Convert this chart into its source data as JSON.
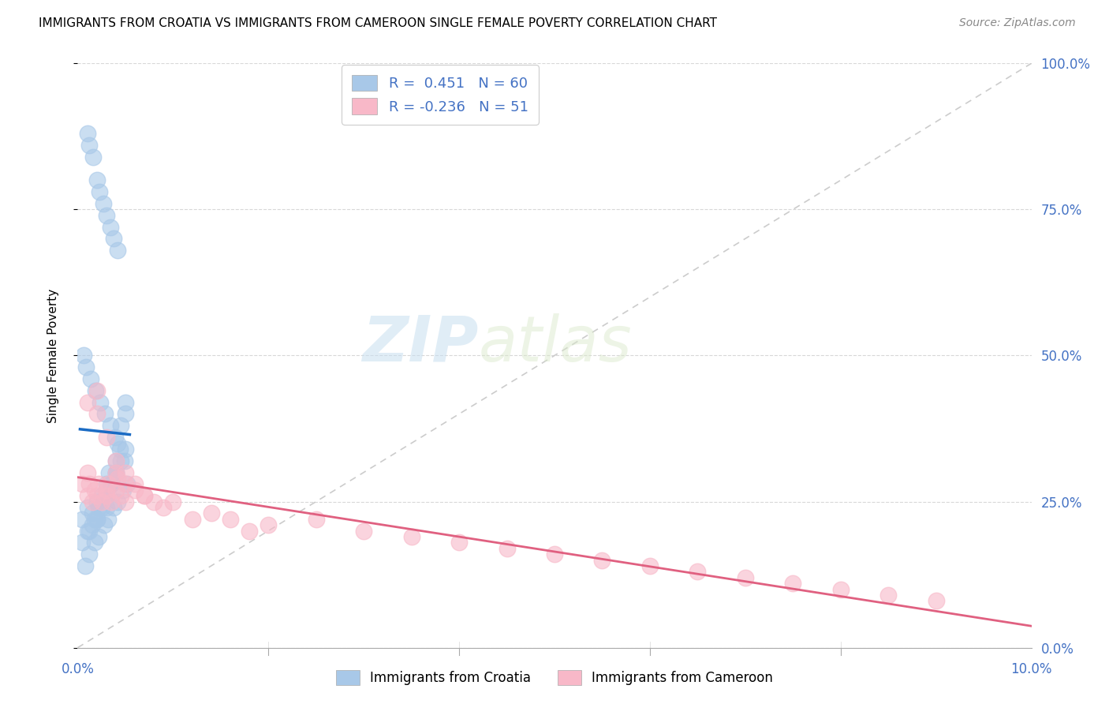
{
  "title": "IMMIGRANTS FROM CROATIA VS IMMIGRANTS FROM CAMEROON SINGLE FEMALE POVERTY CORRELATION CHART",
  "source": "Source: ZipAtlas.com",
  "ylabel": "Single Female Poverty",
  "legend_croatia": "Immigrants from Croatia",
  "legend_cameroon": "Immigrants from Cameroon",
  "R_croatia": 0.451,
  "N_croatia": 60,
  "R_cameroon": -0.236,
  "N_cameroon": 51,
  "color_croatia": "#a8c8e8",
  "color_cameroon": "#f8b8c8",
  "color_line_croatia": "#1a6bc4",
  "color_line_cameroon": "#e06080",
  "watermark_zip": "ZIP",
  "watermark_atlas": "atlas",
  "croatia_x": [
    0.0005,
    0.001,
    0.0012,
    0.0015,
    0.0018,
    0.002,
    0.002,
    0.0022,
    0.0025,
    0.003,
    0.003,
    0.003,
    0.0033,
    0.0035,
    0.004,
    0.004,
    0.0042,
    0.0045,
    0.005,
    0.005,
    0.0005,
    0.001,
    0.0015,
    0.002,
    0.0025,
    0.003,
    0.0035,
    0.004,
    0.0045,
    0.005,
    0.0008,
    0.0012,
    0.0018,
    0.0022,
    0.0028,
    0.0032,
    0.0038,
    0.0042,
    0.0048,
    0.0052,
    0.0006,
    0.0009,
    0.0014,
    0.0019,
    0.0024,
    0.0029,
    0.0034,
    0.0039,
    0.0044,
    0.0049,
    0.001,
    0.0012,
    0.0016,
    0.002,
    0.0023,
    0.0027,
    0.003,
    0.0034,
    0.0038,
    0.0042
  ],
  "croatia_y": [
    0.22,
    0.24,
    0.2,
    0.23,
    0.22,
    0.25,
    0.22,
    0.24,
    0.26,
    0.28,
    0.27,
    0.24,
    0.3,
    0.28,
    0.32,
    0.3,
    0.35,
    0.38,
    0.4,
    0.42,
    0.18,
    0.2,
    0.21,
    0.22,
    0.24,
    0.26,
    0.28,
    0.3,
    0.32,
    0.34,
    0.14,
    0.16,
    0.18,
    0.19,
    0.21,
    0.22,
    0.24,
    0.25,
    0.27,
    0.28,
    0.5,
    0.48,
    0.46,
    0.44,
    0.42,
    0.4,
    0.38,
    0.36,
    0.34,
    0.32,
    0.88,
    0.86,
    0.84,
    0.8,
    0.78,
    0.76,
    0.74,
    0.72,
    0.7,
    0.68
  ],
  "cameroon_x": [
    0.0005,
    0.001,
    0.001,
    0.0012,
    0.0015,
    0.0018,
    0.002,
    0.002,
    0.0022,
    0.0025,
    0.003,
    0.003,
    0.0032,
    0.0035,
    0.004,
    0.004,
    0.0042,
    0.0045,
    0.005,
    0.005,
    0.006,
    0.007,
    0.008,
    0.009,
    0.01,
    0.012,
    0.014,
    0.016,
    0.018,
    0.02,
    0.025,
    0.03,
    0.035,
    0.04,
    0.045,
    0.05,
    0.055,
    0.06,
    0.065,
    0.07,
    0.075,
    0.08,
    0.085,
    0.09,
    0.001,
    0.002,
    0.003,
    0.004,
    0.005,
    0.006,
    0.007
  ],
  "cameroon_y": [
    0.28,
    0.3,
    0.26,
    0.28,
    0.25,
    0.27,
    0.26,
    0.44,
    0.28,
    0.25,
    0.27,
    0.26,
    0.28,
    0.25,
    0.3,
    0.27,
    0.29,
    0.26,
    0.28,
    0.25,
    0.27,
    0.26,
    0.25,
    0.24,
    0.25,
    0.22,
    0.23,
    0.22,
    0.2,
    0.21,
    0.22,
    0.2,
    0.19,
    0.18,
    0.17,
    0.16,
    0.15,
    0.14,
    0.13,
    0.12,
    0.11,
    0.1,
    0.09,
    0.08,
    0.42,
    0.4,
    0.36,
    0.32,
    0.3,
    0.28,
    0.26
  ],
  "xlim": [
    0,
    0.1
  ],
  "ylim": [
    0,
    1.0
  ],
  "yticks": [
    0.0,
    0.25,
    0.5,
    0.75,
    1.0
  ],
  "y_right_labels": [
    "0.0%",
    "25.0%",
    "50.0%",
    "75.0%",
    "100.0%"
  ],
  "grid_color": "#d8d8d8",
  "ref_line_color": "#cccccc"
}
